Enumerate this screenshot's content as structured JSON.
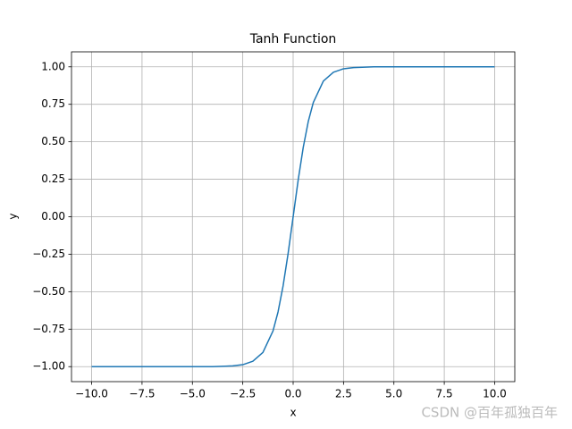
{
  "chart_data": {
    "type": "line",
    "title": "Tanh Function",
    "xlabel": "x",
    "ylabel": "y",
    "x": [
      -10,
      -5,
      -4,
      -3,
      -2.5,
      -2,
      -1.5,
      -1,
      -0.75,
      -0.5,
      -0.25,
      0,
      0.25,
      0.5,
      0.75,
      1,
      1.5,
      2,
      2.5,
      3,
      4,
      5,
      10
    ],
    "series": [
      {
        "color": "#1f77b4",
        "values": [
          -1.0,
          -1.0,
          -1.0,
          -0.995,
          -0.987,
          -0.964,
          -0.905,
          -0.762,
          -0.635,
          -0.462,
          -0.245,
          0.0,
          0.245,
          0.462,
          0.635,
          0.762,
          0.905,
          0.964,
          0.987,
          0.995,
          1.0,
          1.0,
          1.0
        ]
      }
    ],
    "xlim": [
      -11,
      11
    ],
    "xticks": [
      {
        "value": -10,
        "label": "−10.0"
      },
      {
        "value": -7.5,
        "label": "−7.5"
      },
      {
        "value": -5,
        "label": "−5.0"
      },
      {
        "value": -2.5,
        "label": "−2.5"
      },
      {
        "value": 0,
        "label": "0.0"
      },
      {
        "value": 2.5,
        "label": "2.5"
      },
      {
        "value": 5,
        "label": "5.0"
      },
      {
        "value": 7.5,
        "label": "7.5"
      },
      {
        "value": 10,
        "label": "10.0"
      }
    ],
    "ylim": [
      -1.1,
      1.1
    ],
    "yticks": [
      {
        "value": -1,
        "label": "−1.00"
      },
      {
        "value": -0.75,
        "label": "−0.75"
      },
      {
        "value": -0.5,
        "label": "−0.50"
      },
      {
        "value": -0.25,
        "label": "−0.25"
      },
      {
        "value": 0,
        "label": "0.00"
      },
      {
        "value": 0.25,
        "label": "0.25"
      },
      {
        "value": 0.5,
        "label": "0.50"
      },
      {
        "value": 0.75,
        "label": "0.75"
      },
      {
        "value": 1,
        "label": "1.00"
      }
    ],
    "grid": true
  },
  "watermark": "CSDN @百年孤独百年"
}
